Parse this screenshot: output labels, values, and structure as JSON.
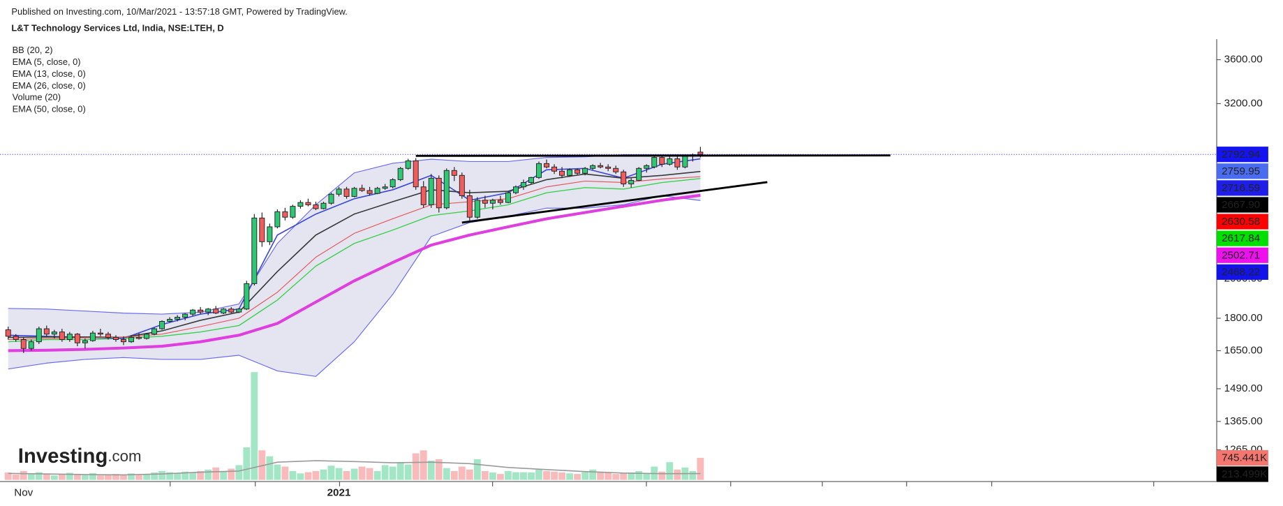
{
  "header": {
    "published": "Published on Investing.com, 10/Mar/2021 - 13:57:18 GMT, Powered by TradingView.",
    "symbol": "L&T Technology Services Ltd, India, NSE:LTEH, D"
  },
  "logo": {
    "brand": "Investing",
    "suffix": ".com"
  },
  "chart_data": {
    "type": "candlestick",
    "log": true,
    "categories": [
      null,
      null,
      "Nov",
      null,
      null,
      null,
      null,
      null,
      null,
      null,
      null,
      null,
      null,
      null,
      null,
      null,
      null,
      null,
      null,
      null,
      null,
      null,
      null,
      null,
      null,
      null,
      null,
      null,
      null,
      null,
      null,
      null,
      null,
      null,
      null,
      null,
      null,
      null,
      null,
      null,
      null,
      null,
      null,
      "2021",
      null,
      null,
      null,
      null,
      null,
      null,
      null,
      null,
      null,
      null,
      null,
      null,
      null,
      null,
      null,
      null,
      null,
      null,
      null,
      null,
      null,
      null,
      null,
      null,
      null,
      null,
      null,
      null,
      null,
      null,
      null,
      null,
      null,
      null,
      null,
      null,
      null,
      null,
      null,
      null,
      null,
      null,
      null,
      null,
      null,
      null,
      null
    ],
    "open": [
      1745,
      1715,
      1700,
      1660,
      1690,
      1750,
      1725,
      1735,
      1700,
      1725,
      1685,
      1695,
      1730,
      1725,
      1710,
      1700,
      1690,
      1710,
      1705,
      1725,
      1750,
      1785,
      1795,
      1805,
      1820,
      1840,
      1830,
      1845,
      1825,
      1845,
      1830,
      1845,
      1975,
      2355,
      2210,
      2300,
      2395,
      2360,
      2430,
      2455,
      2440,
      2415,
      2450,
      2510,
      2545,
      2495,
      2550,
      2535,
      2515,
      2550,
      2560,
      2610,
      2690,
      2745,
      2560,
      2440,
      2620,
      2420,
      2675,
      2640,
      2500,
      2360,
      2470,
      2450,
      2470,
      2455,
      2520,
      2560,
      2590,
      2625,
      2725,
      2700,
      2670,
      2640,
      2680,
      2655,
      2690,
      2710,
      2700,
      2690,
      2665,
      2580,
      2605,
      2690,
      2700,
      2770,
      2720,
      2760,
      2700,
      2780,
      2810
    ],
    "high": [
      1760,
      1725,
      1710,
      1700,
      1760,
      1765,
      1745,
      1750,
      1735,
      1730,
      1705,
      1740,
      1750,
      1735,
      1720,
      1715,
      1720,
      1730,
      1730,
      1755,
      1790,
      1805,
      1815,
      1825,
      1845,
      1855,
      1850,
      1860,
      1850,
      1855,
      1850,
      1990,
      2380,
      2390,
      2320,
      2410,
      2420,
      2440,
      2470,
      2480,
      2460,
      2460,
      2520,
      2560,
      2560,
      2560,
      2575,
      2560,
      2560,
      2580,
      2620,
      2700,
      2760,
      2765,
      2600,
      2650,
      2640,
      2690,
      2700,
      2660,
      2540,
      2490,
      2500,
      2480,
      2500,
      2530,
      2570,
      2610,
      2630,
      2740,
      2755,
      2720,
      2700,
      2690,
      2690,
      2700,
      2720,
      2730,
      2720,
      2710,
      2680,
      2620,
      2700,
      2720,
      2780,
      2790,
      2790,
      2780,
      2790,
      2800,
      2850
    ],
    "low": [
      1700,
      1690,
      1640,
      1650,
      1680,
      1715,
      1705,
      1690,
      1690,
      1670,
      1660,
      1690,
      1715,
      1700,
      1690,
      1675,
      1685,
      1700,
      1700,
      1720,
      1745,
      1780,
      1785,
      1790,
      1810,
      1820,
      1815,
      1820,
      1820,
      1825,
      1825,
      1840,
      1965,
      2180,
      2190,
      2290,
      2340,
      2350,
      2415,
      2430,
      2405,
      2410,
      2440,
      2495,
      2480,
      2490,
      2525,
      2500,
      2510,
      2540,
      2550,
      2600,
      2680,
      2540,
      2420,
      2420,
      2390,
      2410,
      2600,
      2480,
      2330,
      2350,
      2420,
      2410,
      2440,
      2450,
      2510,
      2540,
      2580,
      2615,
      2690,
      2650,
      2620,
      2630,
      2645,
      2640,
      2680,
      2690,
      2670,
      2650,
      2560,
      2555,
      2600,
      2660,
      2690,
      2700,
      2710,
      2680,
      2690,
      2740,
      2770
    ],
    "close": [
      1715,
      1700,
      1660,
      1690,
      1750,
      1725,
      1735,
      1700,
      1725,
      1685,
      1695,
      1730,
      1725,
      1710,
      1700,
      1690,
      1710,
      1705,
      1725,
      1750,
      1785,
      1795,
      1805,
      1820,
      1840,
      1830,
      1845,
      1825,
      1845,
      1830,
      1845,
      1975,
      2355,
      2210,
      2300,
      2395,
      2360,
      2430,
      2455,
      2440,
      2415,
      2450,
      2510,
      2545,
      2495,
      2550,
      2535,
      2515,
      2550,
      2560,
      2610,
      2690,
      2745,
      2560,
      2440,
      2620,
      2420,
      2675,
      2640,
      2500,
      2360,
      2470,
      2450,
      2470,
      2455,
      2520,
      2560,
      2590,
      2625,
      2725,
      2700,
      2670,
      2640,
      2680,
      2655,
      2690,
      2710,
      2700,
      2690,
      2665,
      2580,
      2605,
      2690,
      2710,
      2770,
      2720,
      2760,
      2700,
      2780,
      2790,
      2792.94
    ],
    "volume": [
      250000,
      180000,
      300000,
      220000,
      260000,
      200000,
      150000,
      180000,
      240000,
      200000,
      160000,
      230000,
      150000,
      170000,
      200000,
      180000,
      220000,
      160000,
      200000,
      250000,
      300000,
      260000,
      220000,
      280000,
      250000,
      300000,
      350000,
      420000,
      300000,
      380000,
      500000,
      1100000,
      3650000,
      1000000,
      800000,
      520000,
      450000,
      300000,
      220000,
      260000,
      300000,
      350000,
      480000,
      400000,
      300000,
      380000,
      450000,
      400000,
      300000,
      500000,
      450000,
      600000,
      520000,
      900000,
      1000000,
      650000,
      700000,
      400000,
      300000,
      450000,
      350000,
      700000,
      300000,
      250000,
      200000,
      300000,
      260000,
      260000,
      250000,
      350000,
      300000,
      280000,
      250000,
      220000,
      200000,
      260000,
      350000,
      280000,
      240000,
      200000,
      230000,
      250000,
      300000,
      220000,
      450000,
      280000,
      600000,
      350000,
      420000,
      300000,
      745441
    ],
    "ylim": [
      1167,
      3787
    ],
    "yticks": [
      {
        "value": 3600,
        "label": "3600.00"
      },
      {
        "value": 3200,
        "label": "3200.00"
      },
      {
        "value": 2000,
        "label": "2000.00"
      },
      {
        "value": 1800,
        "label": "1800.00"
      },
      {
        "value": 1650,
        "label": "1650.00"
      },
      {
        "value": 1490,
        "label": "1490.00"
      },
      {
        "value": 1365,
        "label": "1365.00"
      },
      {
        "value": 1265,
        "label": "1265.00"
      }
    ],
    "volume_ylim": [
      0,
      4090000
    ],
    "up_color": "#2ec874",
    "down_color": "#f15c5c",
    "volume_up_color": "#a3e6c6",
    "volume_down_color": "#f8baba",
    "indicators": [
      {
        "name": "BB (20, 2)",
        "fill": "#e5e5f2",
        "lines": [
          {
            "color": "#6a6af0",
            "width": 1,
            "x": [
              0,
              5,
              10,
              15,
              20,
              25,
              30,
              35,
              40,
              45,
              50,
              55,
              60,
              65,
              70,
              75,
              80,
              85,
              90
            ],
            "values": [
              1848,
              1845,
              1835,
              1825,
              1820,
              1830,
              1870,
              2200,
              2440,
              2658,
              2727,
              2757,
              2740,
              2740,
              2770,
              2775,
              2790,
              2790,
              2790
            ]
          },
          {
            "color": "#39d24a",
            "width": 1.2,
            "x": [
              0,
              5,
              10,
              15,
              20,
              25,
              30,
              35,
              40,
              45,
              50,
              55,
              60,
              65,
              70,
              75,
              80,
              85,
              90
            ],
            "values": [
              1690,
              1700,
              1700,
              1705,
              1715,
              1735,
              1765,
              1890,
              2070,
              2200,
              2280,
              2370,
              2400,
              2440,
              2520,
              2555,
              2545,
              2590,
              2617.84
            ]
          },
          {
            "color": "#6a6af0",
            "width": 1,
            "x": [
              0,
              5,
              10,
              15,
              20,
              25,
              30,
              35,
              40,
              45,
              50,
              55,
              60,
              65,
              70,
              75,
              80,
              85,
              90
            ],
            "values": [
              1571,
              1596,
              1612,
              1620,
              1612,
              1612,
              1630,
              1563,
              1540,
              1690,
              1919,
              2241,
              2326,
              2366,
              2418,
              2418,
              2440,
              2500,
              2468.22
            ]
          }
        ]
      },
      {
        "name": "EMA (5, close, 0)",
        "lines": [
          {
            "color": "#3b48dc",
            "width": 1.4,
            "x": [
              0,
              5,
              10,
              15,
              20,
              25,
              30,
              35,
              40,
              45,
              50,
              55,
              60,
              65,
              70,
              75,
              80,
              85,
              90
            ],
            "values": [
              1720,
              1715,
              1710,
              1705,
              1770,
              1820,
              1845,
              2250,
              2380,
              2480,
              2540,
              2640,
              2470,
              2520,
              2680,
              2690,
              2620,
              2720,
              2759.95
            ]
          }
        ]
      },
      {
        "name": "EMA (13, close, 0)",
        "lines": [
          {
            "color": "#3a3a3a",
            "width": 1.4,
            "x": [
              0,
              5,
              10,
              15,
              20,
              25,
              30,
              35,
              40,
              45,
              50,
              55,
              60,
              65,
              70,
              75,
              80,
              85,
              90
            ],
            "values": [
              1710,
              1712,
              1712,
              1710,
              1740,
              1790,
              1830,
              2040,
              2250,
              2380,
              2460,
              2540,
              2520,
              2530,
              2610,
              2650,
              2620,
              2640,
              2667.9
            ]
          }
        ]
      },
      {
        "name": "EMA (26, close, 0)",
        "lines": [
          {
            "color": "#e45a5a",
            "width": 1,
            "x": [
              0,
              5,
              10,
              15,
              20,
              25,
              30,
              35,
              40,
              45,
              50,
              55,
              60,
              65,
              70,
              75,
              80,
              85,
              90
            ],
            "values": [
              1700,
              1705,
              1708,
              1710,
              1725,
              1760,
              1800,
              1930,
              2120,
              2260,
              2350,
              2440,
              2460,
              2480,
              2560,
              2600,
              2590,
              2615,
              2630.58
            ]
          }
        ]
      },
      {
        "name": "Volume (20)",
        "lines": [
          {
            "color": "#9a9a9a",
            "width": 1.4,
            "axis": "volume",
            "x": [
              0,
              5,
              10,
              15,
              20,
              25,
              30,
              35,
              40,
              45,
              50,
              55,
              60,
              65,
              70,
              75,
              80,
              85,
              90
            ],
            "values": [
              220000,
              200000,
              180000,
              170000,
              200000,
              260000,
              300000,
              600000,
              650000,
              620000,
              580000,
              600000,
              550000,
              420000,
              350000,
              280000,
              230000,
              210000,
              213499
            ]
          }
        ]
      },
      {
        "name": "EMA (50, close, 0)",
        "lines": [
          {
            "color": "#e03fe0",
            "width": 3.5,
            "x": [
              0,
              5,
              10,
              15,
              20,
              25,
              30,
              35,
              40,
              45,
              50,
              55,
              60,
              65,
              70,
              75,
              80,
              85,
              90
            ],
            "values": [
              1650,
              1652,
              1656,
              1662,
              1670,
              1690,
              1720,
              1775,
              1880,
              1990,
              2090,
              2190,
              2250,
              2300,
              2350,
              2390,
              2430,
              2470,
              2502.71
            ]
          }
        ]
      }
    ],
    "trend_lines": [
      {
        "color": "#000000",
        "x": [
          53,
          114.7
        ],
        "values": [
          2782,
          2785
        ]
      },
      {
        "color": "#000000",
        "x": [
          59,
          98.7
        ],
        "values": [
          2326,
          2593
        ]
      }
    ],
    "price_badges": [
      {
        "value": 2792.94,
        "color": "#1414f0",
        "text_color": "#ffffff"
      },
      {
        "value": 2759.95,
        "color": "#4a6cf0",
        "text_color": "#ffffff"
      },
      {
        "value": 2716.59,
        "color": "#1e1ee8",
        "text_color": "#ffffff"
      },
      {
        "value": 2667.9,
        "label": "2667.90",
        "color": "#000000",
        "text_color": "#ffffff"
      },
      {
        "value": 2630.58,
        "color": "#ff0000",
        "text_color": "#ffffff"
      },
      {
        "value": 2617.84,
        "color": "#00e000",
        "text_color": "#000000"
      },
      {
        "value": 2502.71,
        "color": "#ee11ee",
        "text_color": "#ffffff"
      },
      {
        "value": 2468.22,
        "color": "#1212ea",
        "text_color": "#ffffff"
      }
    ],
    "volume_badges": [
      {
        "value": 745441,
        "label": "745.441K",
        "color": "#f4766f",
        "text_color": "#ffffff"
      },
      {
        "value": 213499,
        "label": "213.499K",
        "color": "#000000",
        "text_color": "#ffffff"
      }
    ]
  }
}
